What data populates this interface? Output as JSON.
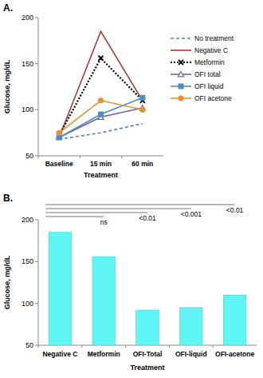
{
  "chart_data": [
    {
      "type": "line",
      "title": "A.",
      "y_label": "Glucose, mg/dL",
      "x_label": "Treatment",
      "categories": [
        "Baseline",
        "15 min",
        "60 min"
      ],
      "series": [
        {
          "name": "No treatment",
          "color": "#4f81bd",
          "line_style": "dashed",
          "marker": "none",
          "values": [
            68,
            75,
            85
          ]
        },
        {
          "name": "Negative C",
          "color": "#a33b36",
          "line_style": "solid",
          "marker": "none",
          "values": [
            70,
            185,
            110
          ]
        },
        {
          "name": "Metformin",
          "color": "#000000",
          "line_style": "dotted",
          "marker": "x",
          "values": [
            72,
            156,
            110
          ]
        },
        {
          "name": "OFI total",
          "color": "#7a5fa0",
          "line_style": "solid",
          "marker": "triangle",
          "values": [
            70,
            92,
            102
          ]
        },
        {
          "name": "OFI liquid",
          "color": "#4a8fc0",
          "line_style": "solid",
          "marker": "square",
          "values": [
            70,
            95,
            113
          ]
        },
        {
          "name": "OFI acetone",
          "color": "#e8912e",
          "line_style": "solid",
          "marker": "circle",
          "values": [
            75,
            110,
            100
          ]
        }
      ],
      "ylim": [
        50,
        200
      ],
      "yticks": [
        50,
        100,
        150,
        200
      ],
      "grid": false,
      "legend": "right"
    },
    {
      "type": "bar",
      "title": "B.",
      "y_label": "Glucose, mg/dL",
      "x_label": "Treatment",
      "categories": [
        "Negative C",
        "Metformin",
        "OFI-Total",
        "OFI-liquid",
        "OFI-acetone"
      ],
      "values": [
        185,
        156,
        92,
        95,
        110
      ],
      "color": "#5ff5f5",
      "ylim": [
        50,
        200
      ],
      "yticks": [
        50,
        100,
        150,
        200
      ],
      "grid": false,
      "annotations": [
        {
          "text": "ns",
          "category": "Metformin"
        },
        {
          "text": "<0.01",
          "category": "OFI-Total"
        },
        {
          "text": "<0.001",
          "category": "OFI-liquid"
        },
        {
          "text": "<0.01",
          "category": "OFI-acetone"
        }
      ]
    }
  ]
}
